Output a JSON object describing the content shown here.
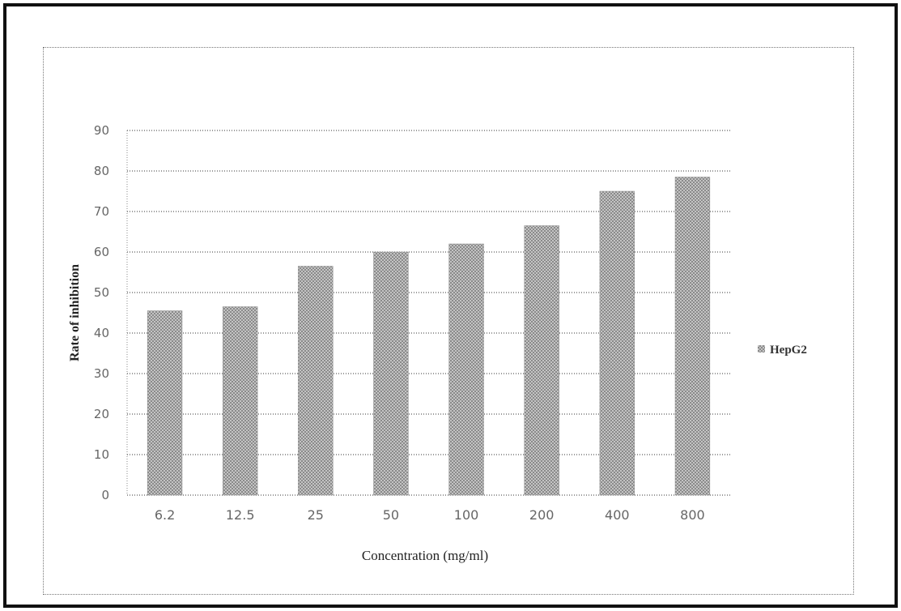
{
  "chart_data": {
    "type": "bar",
    "categories": [
      "6.2",
      "12.5",
      "25",
      "50",
      "100",
      "200",
      "400",
      "800"
    ],
    "series": [
      {
        "name": "HepG2",
        "values": [
          45.5,
          46.5,
          56.5,
          60,
          62,
          66.5,
          75,
          78.5
        ]
      }
    ],
    "title": "",
    "xlabel": "Concentration (mg/ml)",
    "ylabel": "Rate of inhibition",
    "ylim": [
      0,
      90
    ],
    "yticks": [
      "0",
      "10",
      "20",
      "30",
      "40",
      "50",
      "60",
      "70",
      "80",
      "90"
    ],
    "grid": true,
    "legend_position": "right",
    "colors": {
      "bar": "#9a9a9a",
      "grid": "#333333",
      "frame": "#111111"
    }
  }
}
